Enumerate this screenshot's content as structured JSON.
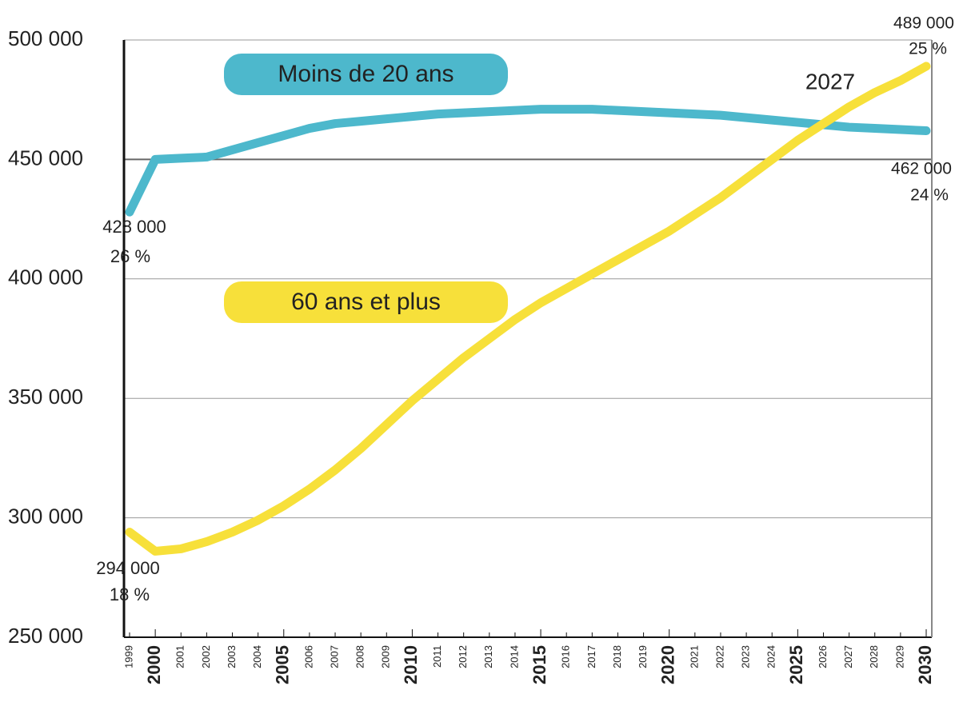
{
  "chart_data": {
    "type": "line",
    "x": [
      1999,
      2000,
      2001,
      2002,
      2003,
      2004,
      2005,
      2006,
      2007,
      2008,
      2009,
      2010,
      2011,
      2012,
      2013,
      2014,
      2015,
      2016,
      2017,
      2018,
      2019,
      2020,
      2021,
      2022,
      2023,
      2024,
      2025,
      2026,
      2027,
      2028,
      2029,
      2030
    ],
    "xticks": [
      1999,
      2000,
      2001,
      2002,
      2003,
      2004,
      2005,
      2006,
      2007,
      2008,
      2009,
      2010,
      2011,
      2012,
      2013,
      2014,
      2015,
      2016,
      2017,
      2018,
      2019,
      2020,
      2021,
      2022,
      2023,
      2024,
      2025,
      2026,
      2027,
      2028,
      2029,
      2030
    ],
    "xlim": [
      1999,
      2030
    ],
    "ylim": [
      250000,
      500000
    ],
    "yticks": [
      {
        "value": 250000,
        "label": "250 000"
      },
      {
        "value": 300000,
        "label": "300 000"
      },
      {
        "value": 350000,
        "label": "350 000"
      },
      {
        "value": 400000,
        "label": "400 000"
      },
      {
        "value": 450000,
        "label": "450 000"
      },
      {
        "value": 500000,
        "label": "500 000"
      }
    ],
    "grid": true,
    "series": [
      {
        "name": "Moins de 20 ans",
        "color": "#4db8cc",
        "values": [
          428000,
          450000,
          450500,
          451000,
          454000,
          457000,
          460000,
          463000,
          465000,
          466000,
          467000,
          468000,
          469000,
          469500,
          470000,
          470500,
          471000,
          471000,
          471000,
          470500,
          470000,
          469500,
          469000,
          468500,
          467500,
          466500,
          465500,
          464500,
          463500,
          463000,
          462500,
          462000
        ]
      },
      {
        "name": "60 ans et plus",
        "color": "#f7e03a",
        "values": [
          294000,
          286000,
          287000,
          290000,
          294000,
          299000,
          305000,
          312000,
          320000,
          329000,
          339000,
          349000,
          358000,
          367000,
          375000,
          383000,
          390000,
          396000,
          402000,
          408000,
          414000,
          420000,
          427000,
          434000,
          442000,
          450000,
          458000,
          465000,
          472000,
          478000,
          483000,
          489000
        ]
      }
    ],
    "annotations": [
      "428 000",
      "26 %",
      "294 000",
      "18 %",
      "489 000",
      "25 %",
      "462 000",
      "24 %",
      "2027"
    ]
  }
}
